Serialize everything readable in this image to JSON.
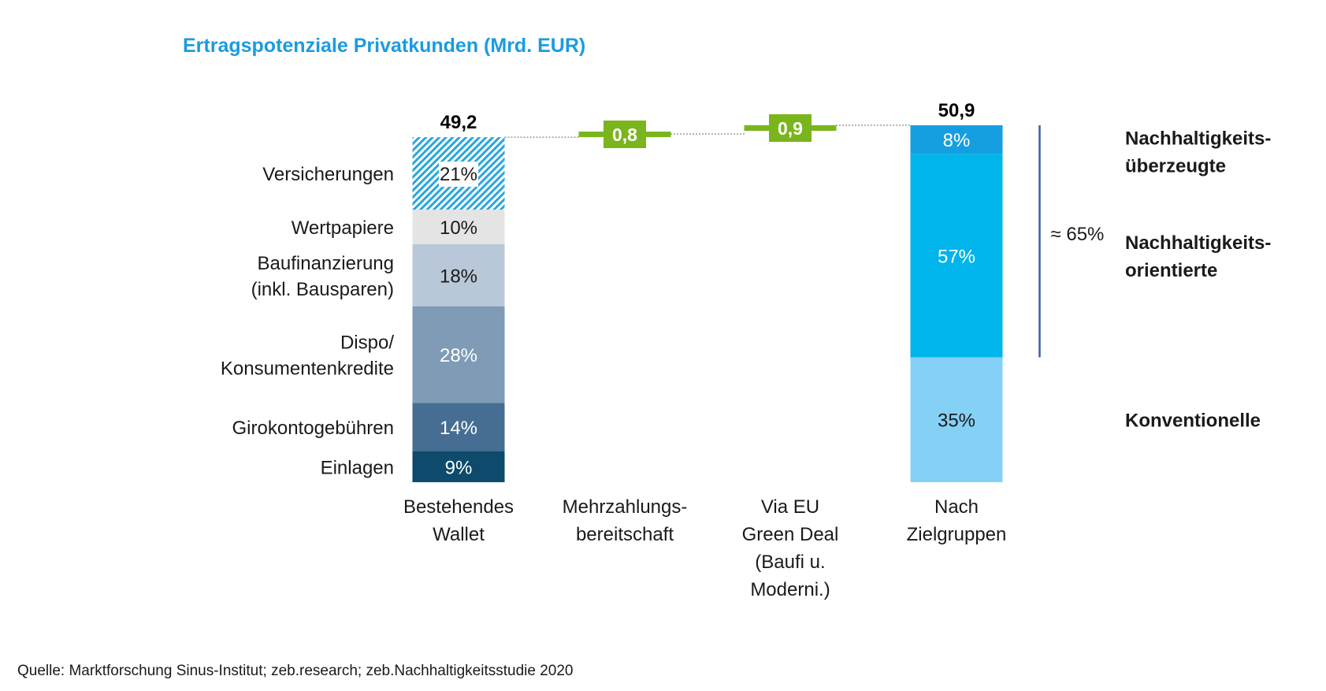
{
  "title": "Ertragspotenziale Privatkunden (Mrd. EUR)",
  "source": "Quelle: Marktforschung Sinus-Institut; zeb.research; zeb.Nachhaltigkeitsstudie 2020",
  "colors": {
    "title": "#1b9be0",
    "delta": "#7ab51d",
    "bracket": "#3a5fa8",
    "connector": "#888888"
  },
  "chart_data": {
    "type": "bar",
    "subtype": "waterfall-stacked",
    "categories": [
      [
        "Bestehendes",
        "Wallet"
      ],
      [
        "Mehrzahlungs-",
        "bereitschaft"
      ],
      [
        "Via EU",
        "Green Deal",
        "(Baufi u.",
        "Moderni.)"
      ],
      [
        "Nach",
        "Zielgruppen"
      ]
    ],
    "bars": [
      {
        "category_index": 0,
        "kind": "total",
        "total_label": "49,2",
        "total_value": 49.2,
        "segments": [
          {
            "label": [
              "Einlagen"
            ],
            "value": 9,
            "value_label": "9%",
            "color": "#0d4a6b",
            "text_color": "#ffffff"
          },
          {
            "label": [
              "Girokontogebühren"
            ],
            "value": 14,
            "value_label": "14%",
            "color": "#456e92",
            "text_color": "#ffffff"
          },
          {
            "label": [
              "Dispo/",
              "Konsumentenkredite"
            ],
            "value": 28,
            "value_label": "28%",
            "color": "#7f9bb5",
            "text_color": "#ffffff"
          },
          {
            "label": [
              "Baufinanzierung",
              "(inkl. Bausparen)"
            ],
            "value": 18,
            "value_label": "18%",
            "color": "#b9c8d8",
            "text_color": "#1a1a1a"
          },
          {
            "label": [
              "Wertpapiere"
            ],
            "value": 10,
            "value_label": "10%",
            "color": "#e4e4e4",
            "text_color": "#1a1a1a"
          },
          {
            "label": [
              "Versicherungen"
            ],
            "value": 21,
            "value_label": "21%",
            "color": "#2aa6de",
            "hatched": true,
            "text_color": "#1a1a1a"
          }
        ]
      },
      {
        "category_index": 1,
        "kind": "delta",
        "value": 0.8,
        "value_label": "0,8"
      },
      {
        "category_index": 2,
        "kind": "delta",
        "value": 0.9,
        "value_label": "0,9"
      },
      {
        "category_index": 3,
        "kind": "total",
        "total_label": "50,9",
        "total_value": 50.9,
        "segments": [
          {
            "label": [
              "Konventionelle"
            ],
            "value": 35,
            "value_label": "35%",
            "color": "#85d0f5",
            "text_color": "#1a1a1a"
          },
          {
            "label": [
              "Nachhaltigkeits-",
              "orientierte"
            ],
            "value": 57,
            "value_label": "57%",
            "color": "#00b4ec",
            "text_color": "#ffffff"
          },
          {
            "label": [
              "Nachhaltigkeits-",
              "überzeugte"
            ],
            "value": 8,
            "value_label": "8%",
            "color": "#159fe0",
            "text_color": "#ffffff"
          }
        ]
      }
    ],
    "bracket": {
      "label": "≈ 65%",
      "covers_segments_of_bar": 3,
      "segment_indices": [
        1,
        2
      ]
    }
  }
}
